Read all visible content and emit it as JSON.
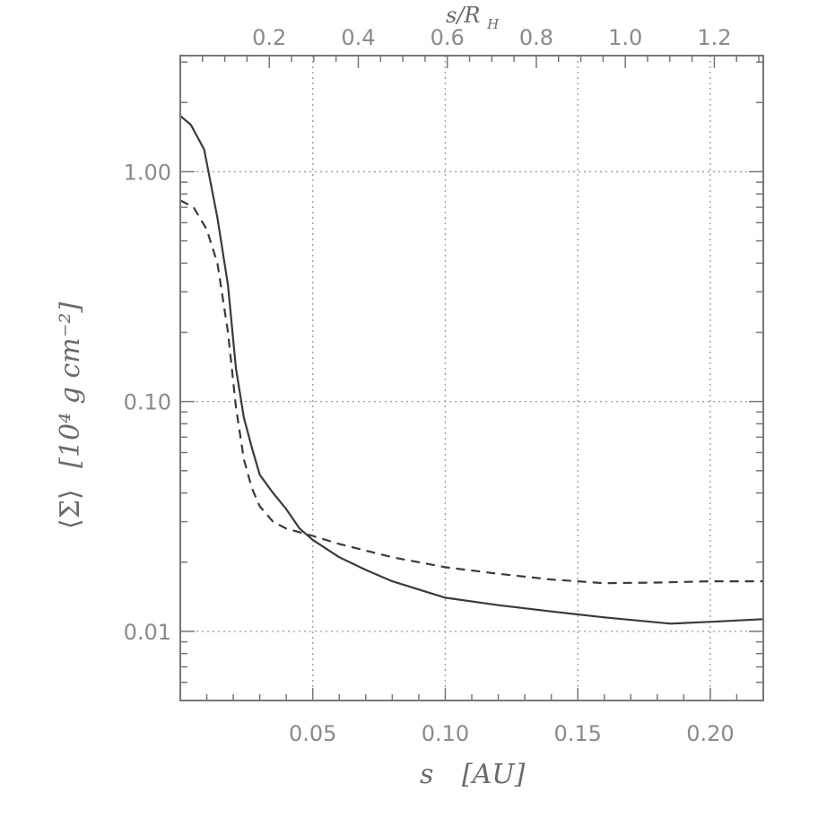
{
  "chart_data": {
    "type": "line",
    "xlabel_symbol": "s",
    "xlabel_unit": "[AU]",
    "top_xlabel_symbol": "s/R",
    "top_xlabel_subscript": "H",
    "ylabel_symbol": "⟨Σ⟩",
    "ylabel_unit": "[10⁴ g cm⁻²]",
    "xlim": [
      0.0,
      0.22
    ],
    "top_xlim": [
      0.0,
      1.31
    ],
    "ylim": [
      0.005,
      3.2
    ],
    "y_scale": "log",
    "grid": true,
    "x_ticks": [
      0.05,
      0.1,
      0.15,
      0.2
    ],
    "x_tick_labels": [
      "0.05",
      "0.10",
      "0.15",
      "0.20"
    ],
    "top_x_ticks": [
      0.2,
      0.4,
      0.6,
      0.8,
      1.0,
      1.2
    ],
    "top_x_tick_labels": [
      "0.2",
      "0.4",
      "0.6",
      "0.8",
      "1.0",
      "1.2"
    ],
    "y_ticks": [
      0.01,
      0.1,
      1.0
    ],
    "y_tick_labels": [
      "0.01",
      "0.10",
      "1.00"
    ],
    "series": [
      {
        "style": "solid",
        "x": [
          0.0,
          0.004,
          0.009,
          0.014,
          0.018,
          0.021,
          0.024,
          0.027,
          0.03,
          0.035,
          0.04,
          0.045,
          0.05,
          0.06,
          0.07,
          0.08,
          0.1,
          0.12,
          0.14,
          0.16,
          0.185,
          0.2,
          0.22
        ],
        "y": [
          1.75,
          1.6,
          1.25,
          0.63,
          0.32,
          0.14,
          0.085,
          0.063,
          0.048,
          0.04,
          0.034,
          0.028,
          0.025,
          0.021,
          0.0185,
          0.0165,
          0.014,
          0.013,
          0.0122,
          0.0115,
          0.0108,
          0.011,
          0.0113
        ]
      },
      {
        "style": "dashed",
        "x": [
          0.0,
          0.005,
          0.01,
          0.014,
          0.018,
          0.021,
          0.024,
          0.027,
          0.03,
          0.035,
          0.04,
          0.05,
          0.06,
          0.08,
          0.1,
          0.12,
          0.14,
          0.16,
          0.18,
          0.2,
          0.22
        ],
        "y": [
          0.75,
          0.7,
          0.56,
          0.4,
          0.2,
          0.095,
          0.056,
          0.042,
          0.035,
          0.03,
          0.028,
          0.026,
          0.024,
          0.021,
          0.019,
          0.0178,
          0.0168,
          0.0162,
          0.0163,
          0.0165,
          0.0165
        ]
      }
    ]
  }
}
